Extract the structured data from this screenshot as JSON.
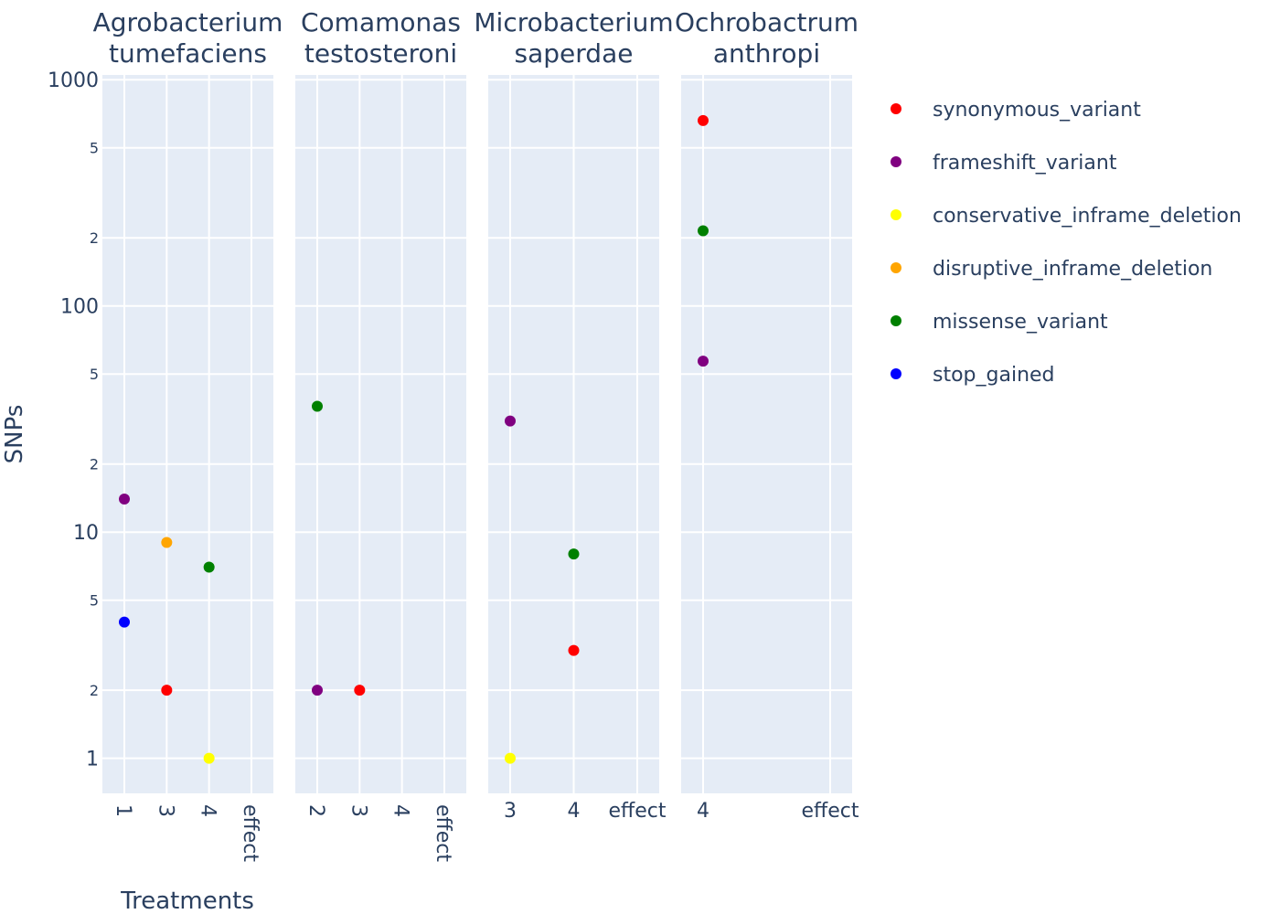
{
  "chart_data": {
    "type": "scatter",
    "y_scale": "log",
    "ylim": [
      0.7,
      1050
    ],
    "ylabel": "SNPs",
    "xlabel": "Treatments",
    "y_major_ticks": [
      {
        "value": 1,
        "label": "1"
      },
      {
        "value": 10,
        "label": "10"
      },
      {
        "value": 100,
        "label": "100"
      },
      {
        "value": 1000,
        "label": "1000"
      }
    ],
    "y_minor_ticks": [
      {
        "value": 2,
        "label": "2"
      },
      {
        "value": 5,
        "label": "5"
      },
      {
        "value": 20,
        "label": "2"
      },
      {
        "value": 50,
        "label": "5"
      },
      {
        "value": 200,
        "label": "2"
      },
      {
        "value": 500,
        "label": "5"
      }
    ],
    "grid": true,
    "legend_position": "right",
    "legend": [
      {
        "name": "synonymous_variant",
        "color": "#ff0000"
      },
      {
        "name": "frameshift_variant",
        "color": "#800080"
      },
      {
        "name": "conservative_inframe_deletion",
        "color": "#ffff00"
      },
      {
        "name": "disruptive_inframe_deletion",
        "color": "#ffa500"
      },
      {
        "name": "missense_variant",
        "color": "#008000"
      },
      {
        "name": "stop_gained",
        "color": "#0000ff"
      }
    ],
    "panels": [
      {
        "title_lines": [
          "Agrobacterium",
          "tumefaciens"
        ],
        "categories": [
          "1",
          "3",
          "4",
          "effect"
        ],
        "x_tick_rotation": 90,
        "points": [
          {
            "x": "1",
            "y": 14,
            "effect": "frameshift_variant"
          },
          {
            "x": "1",
            "y": 4,
            "effect": "stop_gained"
          },
          {
            "x": "3",
            "y": 9,
            "effect": "disruptive_inframe_deletion"
          },
          {
            "x": "3",
            "y": 2,
            "effect": "synonymous_variant"
          },
          {
            "x": "4",
            "y": 7,
            "effect": "missense_variant"
          },
          {
            "x": "4",
            "y": 1,
            "effect": "conservative_inframe_deletion"
          }
        ]
      },
      {
        "title_lines": [
          "Comamonas",
          "testosteroni"
        ],
        "categories": [
          "2",
          "3",
          "4",
          "effect"
        ],
        "x_tick_rotation": 90,
        "points": [
          {
            "x": "2",
            "y": 36,
            "effect": "missense_variant"
          },
          {
            "x": "2",
            "y": 2,
            "effect": "frameshift_variant"
          },
          {
            "x": "3",
            "y": 2,
            "effect": "synonymous_variant"
          }
        ]
      },
      {
        "title_lines": [
          "Microbacterium",
          "saperdae"
        ],
        "categories": [
          "3",
          "4",
          "effect"
        ],
        "x_tick_rotation": 0,
        "points": [
          {
            "x": "3",
            "y": 31,
            "effect": "frameshift_variant"
          },
          {
            "x": "3",
            "y": 1,
            "effect": "conservative_inframe_deletion"
          },
          {
            "x": "4",
            "y": 8,
            "effect": "missense_variant"
          },
          {
            "x": "4",
            "y": 3,
            "effect": "synonymous_variant"
          }
        ]
      },
      {
        "title_lines": [
          "Ochrobactrum",
          "anthropi"
        ],
        "categories": [
          "4",
          "effect"
        ],
        "x_tick_rotation": 0,
        "points": [
          {
            "x": "4",
            "y": 660,
            "effect": "synonymous_variant"
          },
          {
            "x": "4",
            "y": 215,
            "effect": "missense_variant"
          },
          {
            "x": "4",
            "y": 57,
            "effect": "frameshift_variant"
          }
        ]
      }
    ]
  }
}
